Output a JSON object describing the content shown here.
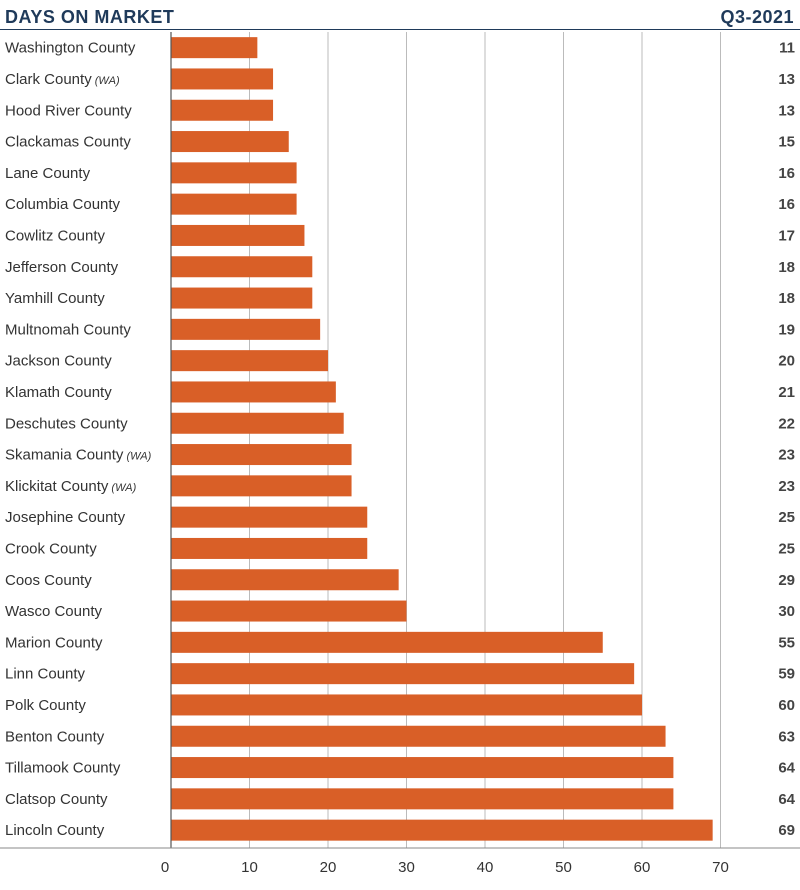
{
  "header": {
    "title": "DAYS ON MARKET",
    "period": "Q3-2021"
  },
  "chart_data": {
    "type": "bar",
    "orientation": "horizontal",
    "title": "DAYS ON MARKET",
    "subtitle": "Q3-2021",
    "categories": [
      {
        "name": "Washington County",
        "note": ""
      },
      {
        "name": "Clark County",
        "note": "(WA)"
      },
      {
        "name": "Hood River County",
        "note": ""
      },
      {
        "name": "Clackamas County",
        "note": ""
      },
      {
        "name": "Lane County",
        "note": ""
      },
      {
        "name": "Columbia County",
        "note": ""
      },
      {
        "name": "Cowlitz County",
        "note": ""
      },
      {
        "name": "Jefferson County",
        "note": ""
      },
      {
        "name": "Yamhill County",
        "note": ""
      },
      {
        "name": "Multnomah County",
        "note": ""
      },
      {
        "name": "Jackson County",
        "note": ""
      },
      {
        "name": "Klamath County",
        "note": ""
      },
      {
        "name": "Deschutes County",
        "note": ""
      },
      {
        "name": "Skamania County",
        "note": "(WA)"
      },
      {
        "name": "Klickitat County",
        "note": "(WA)"
      },
      {
        "name": "Josephine County",
        "note": ""
      },
      {
        "name": "Crook County",
        "note": ""
      },
      {
        "name": "Coos County",
        "note": ""
      },
      {
        "name": "Wasco County",
        "note": ""
      },
      {
        "name": "Marion County",
        "note": ""
      },
      {
        "name": "Linn County",
        "note": ""
      },
      {
        "name": "Polk County",
        "note": ""
      },
      {
        "name": "Benton County",
        "note": ""
      },
      {
        "name": "Tillamook County",
        "note": ""
      },
      {
        "name": "Clatsop County",
        "note": ""
      },
      {
        "name": "Lincoln County",
        "note": ""
      }
    ],
    "values": [
      11,
      13,
      13,
      15,
      16,
      16,
      17,
      18,
      18,
      19,
      20,
      21,
      22,
      23,
      23,
      25,
      25,
      29,
      30,
      55,
      59,
      60,
      63,
      64,
      64,
      69
    ],
    "xlim": [
      0,
      70
    ],
    "ticks": [
      0,
      10,
      20,
      30,
      40,
      50,
      60,
      70
    ],
    "grid": true,
    "bar_color": "#d95f27",
    "grid_color": "#bbbbbb",
    "xlabel": "",
    "ylabel": ""
  }
}
